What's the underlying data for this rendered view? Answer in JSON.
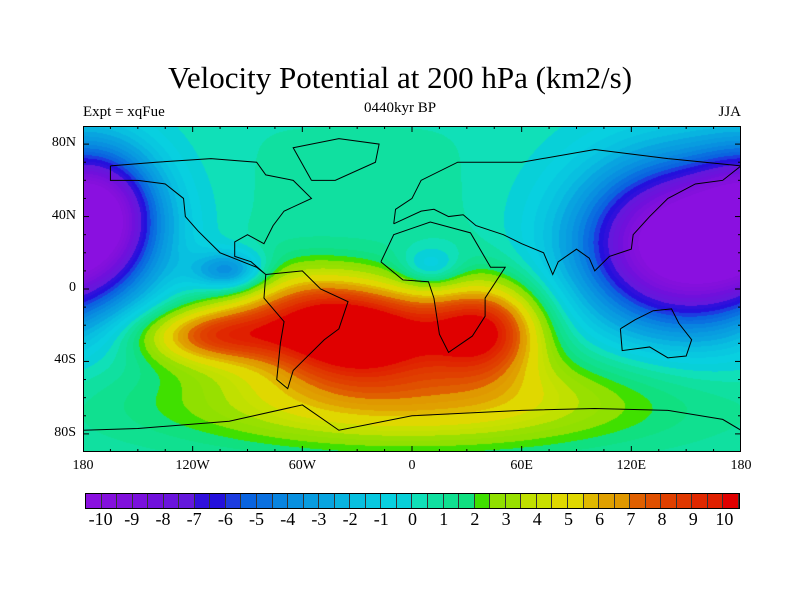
{
  "title": "Velocity Potential at 200 hPa (km2/s)",
  "left_string": "Expt = xqFue",
  "center_string": "0440kyr BP",
  "right_string": "JJA",
  "chart_data": {
    "type": "heatmap",
    "projection": "cylindrical equidistant",
    "variable": "Velocity Potential at 200 hPa",
    "units": "km2/s",
    "xlim": [
      -180,
      180
    ],
    "ylim": [
      -90,
      90
    ],
    "x_ticks": [
      {
        "v": -180,
        "label": "180"
      },
      {
        "v": -120,
        "label": "120W"
      },
      {
        "v": -60,
        "label": "60W"
      },
      {
        "v": 0,
        "label": "0"
      },
      {
        "v": 60,
        "label": "60E"
      },
      {
        "v": 120,
        "label": "120E"
      },
      {
        "v": 180,
        "label": "180"
      }
    ],
    "y_ticks": [
      {
        "v": 80,
        "label": "80N"
      },
      {
        "v": 40,
        "label": "40N"
      },
      {
        "v": 0,
        "label": "0"
      },
      {
        "v": -40,
        "label": "40S"
      },
      {
        "v": -80,
        "label": "80S"
      }
    ],
    "levels_min": -10,
    "levels_max": 10,
    "levels_step": 0.5,
    "colorbar_labels": [
      "-10",
      "-9",
      "-8",
      "-7",
      "-6",
      "-5",
      "-4",
      "-3",
      "-2",
      "-1",
      "0",
      "1",
      "2",
      "3",
      "4",
      "5",
      "6",
      "7",
      "8",
      "9",
      "10"
    ],
    "colorbar_colors": [
      "#8a10e0",
      "#8410dc",
      "#8010dc",
      "#7a10dc",
      "#7010dc",
      "#6a14dc",
      "#6418dc",
      "#3010dc",
      "#2410dc",
      "#1c3ce0",
      "#0a64e0",
      "#0a70e0",
      "#0884e0",
      "#0890e0",
      "#089ce0",
      "#08a4e0",
      "#08b4e0",
      "#08c0e0",
      "#08c8e0",
      "#08d0e0",
      "#08d0d8",
      "#10e0b8",
      "#10e0a0",
      "#10e090",
      "#10e080",
      "#40e000",
      "#90e000",
      "#98e000",
      "#c0e000",
      "#c8e000",
      "#e0d800",
      "#e0d800",
      "#e0b800",
      "#e0a000",
      "#e09800",
      "#e06000",
      "#e05000",
      "#e04000",
      "#e03800",
      "#e02800",
      "#e02000",
      "#e00000"
    ],
    "extrema_estimates": [
      {
        "lon": 150,
        "lat": 25,
        "value": -10,
        "kind": "minimum"
      },
      {
        "lon": -100,
        "lat": 10,
        "value": -7,
        "kind": "minimum"
      },
      {
        "lon": -30,
        "lat": -25,
        "value": 9,
        "kind": "maximum"
      },
      {
        "lon": 40,
        "lat": -22,
        "value": 8.5,
        "kind": "maximum"
      },
      {
        "lon": -110,
        "lat": -25,
        "value": 8,
        "kind": "maximum"
      }
    ]
  }
}
